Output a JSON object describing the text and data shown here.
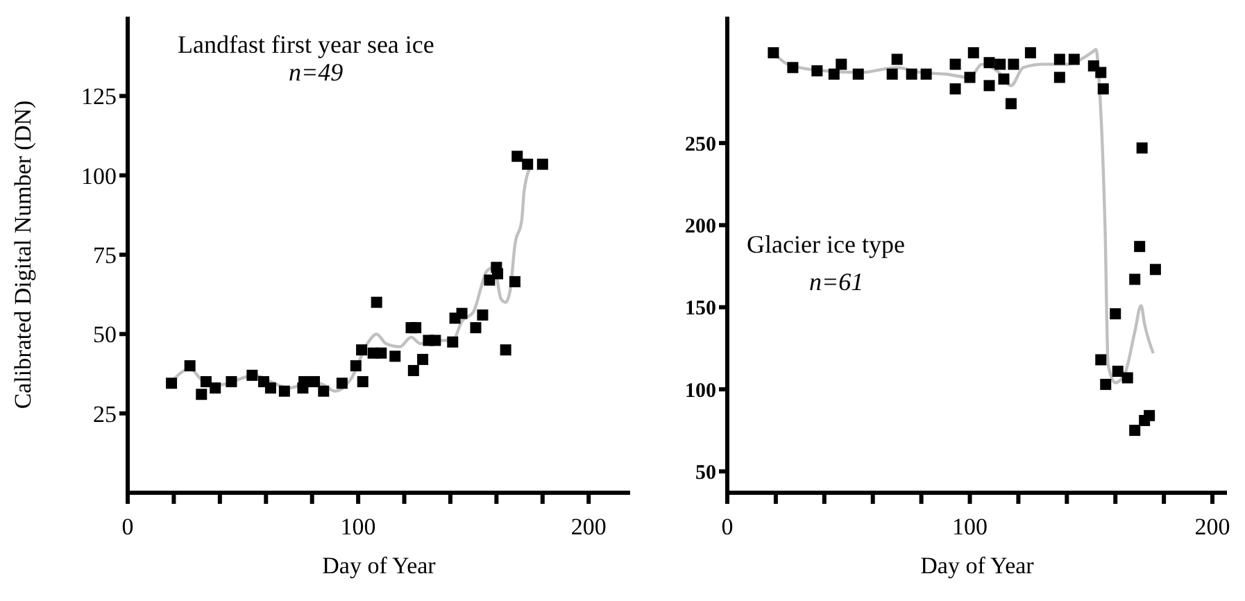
{
  "chart_data": [
    {
      "type": "scatter",
      "xlabel": "Day of Year",
      "ylabel": "Calibrated Digital Number (DN)",
      "annotations": [
        "Landfast first year sea ice",
        "n=49"
      ],
      "xlim": [
        0,
        218
      ],
      "ylim": [
        0,
        150
      ],
      "xticks": [
        0,
        {
          "value": 20,
          "label": null
        },
        {
          "value": 40,
          "label": null
        },
        {
          "value": 60,
          "label": null
        },
        {
          "value": 80,
          "label": null
        },
        100,
        {
          "value": 120,
          "label": null
        },
        {
          "value": 140,
          "label": null
        },
        {
          "value": 160,
          "label": null
        },
        {
          "value": 180,
          "label": null
        },
        200
      ],
      "yticks": [
        25,
        50,
        75,
        100,
        125
      ],
      "marker": "square",
      "series": [
        {
          "color": "#000000",
          "x": [
            19,
            27,
            32,
            34,
            38,
            45,
            54,
            59,
            62,
            68,
            76,
            76.5,
            81,
            85,
            93,
            99,
            101.5,
            102,
            106.5,
            108,
            110,
            116,
            123,
            125,
            124,
            128,
            130.5,
            133.5,
            141,
            142,
            145,
            151,
            154,
            157,
            160,
            160.5,
            164,
            168,
            169,
            173.5,
            180
          ],
          "values": [
            34.5,
            40,
            31,
            35,
            33,
            35,
            37,
            35,
            33,
            32,
            33,
            35,
            35,
            32,
            34.5,
            40,
            45,
            35,
            44,
            60,
            44,
            43,
            52,
            52,
            38.5,
            42,
            48,
            48,
            47.5,
            55,
            56.5,
            52,
            56,
            67,
            71,
            69,
            45,
            66.5,
            106,
            103.5,
            103.5
          ]
        },
        {
          "type": "line",
          "color": "#c0c0c0",
          "marker": "none",
          "x": [
            19,
            27,
            33,
            40,
            55,
            62,
            70,
            80,
            85,
            90,
            97,
            104,
            108,
            112,
            118,
            123,
            127,
            133,
            141,
            145,
            150,
            156,
            159,
            162,
            164,
            166,
            168,
            171,
            172,
            175
          ],
          "values": [
            35,
            39,
            35,
            34,
            37,
            35,
            33,
            35,
            34,
            32,
            36,
            47,
            50,
            47,
            46,
            49,
            47,
            48,
            48,
            54,
            57,
            70,
            71,
            61,
            60,
            64,
            78,
            86,
            95,
            103
          ]
        }
      ]
    },
    {
      "type": "scatter",
      "xlabel": "Day of Year",
      "annotations": [
        "Glacier ice type",
        "n=61"
      ],
      "xlim": [
        0,
        206
      ],
      "ylim": [
        37,
        327
      ],
      "xticks": [
        0,
        {
          "value": 20,
          "label": null
        },
        {
          "value": 40,
          "label": null
        },
        {
          "value": 60,
          "label": null
        },
        {
          "value": 80,
          "label": null
        },
        100,
        {
          "value": 120,
          "label": null
        },
        {
          "value": 140,
          "label": null
        },
        {
          "value": 160,
          "label": null
        },
        {
          "value": 180,
          "label": null
        },
        200
      ],
      "yticks": [
        50,
        100,
        150,
        200,
        250
      ],
      "marker": "square",
      "series": [
        {
          "color": "#000000",
          "x": [
            19,
            27,
            37,
            44,
            47,
            54,
            68,
            70,
            76,
            82,
            94,
            94,
            100,
            101.5,
            108,
            108,
            112.5,
            114,
            117,
            118,
            125,
            137,
            137,
            143,
            151,
            154,
            155,
            171,
            170,
            176.5,
            168,
            160,
            154,
            156,
            161,
            165,
            168,
            172,
            174
          ],
          "values": [
            305,
            296,
            294,
            292,
            298,
            292,
            292,
            301,
            292,
            292,
            283,
            298,
            290,
            305,
            285,
            299,
            298,
            289,
            274,
            298,
            305,
            290,
            301,
            301,
            297,
            293,
            283,
            247,
            187,
            173,
            167,
            146,
            118,
            103,
            111,
            107,
            75,
            81,
            84
          ]
        },
        {
          "type": "line",
          "color": "#c0c0c0",
          "marker": "none",
          "x": [
            19,
            25,
            40,
            55,
            70,
            80,
            90,
            100,
            105,
            112,
            117,
            122,
            130,
            140,
            148,
            151,
            152,
            153.6,
            155.8,
            157,
            160,
            164,
            168,
            170.6,
            172,
            175.6
          ],
          "values": [
            305,
            298,
            294,
            293,
            296,
            293,
            292,
            290,
            298,
            293,
            285,
            296,
            298,
            298,
            303,
            306,
            307,
            280,
            195,
            115,
            104,
            110,
            135,
            151,
            140,
            122
          ]
        }
      ]
    }
  ]
}
